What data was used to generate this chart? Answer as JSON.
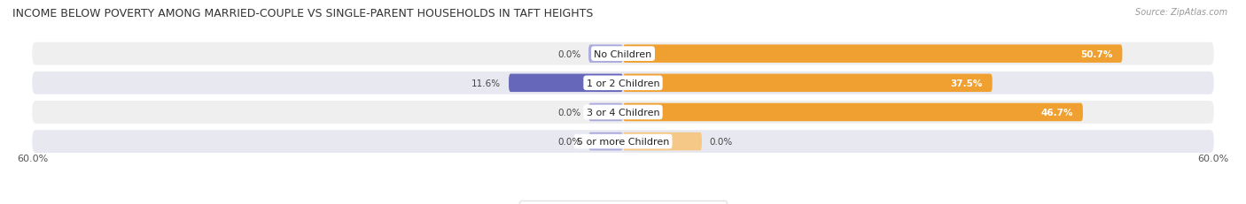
{
  "title": "INCOME BELOW POVERTY AMONG MARRIED-COUPLE VS SINGLE-PARENT HOUSEHOLDS IN TAFT HEIGHTS",
  "source": "Source: ZipAtlas.com",
  "categories": [
    "No Children",
    "1 or 2 Children",
    "3 or 4 Children",
    "5 or more Children"
  ],
  "married_couples": [
    0.0,
    11.6,
    0.0,
    0.0
  ],
  "single_parents": [
    50.7,
    37.5,
    46.7,
    0.0
  ],
  "x_max": 60.0,
  "x_left_label": "60.0%",
  "x_right_label": "60.0%",
  "married_color_dark": "#6666bb",
  "married_color_light": "#aaaadd",
  "single_color_dark": "#f0a030",
  "single_color_light": "#f5c888",
  "row_bg_even": "#efefef",
  "row_bg_odd": "#e8e8f0",
  "title_fontsize": 9,
  "label_fontsize": 8,
  "value_fontsize": 7.5,
  "tick_fontsize": 8,
  "legend_fontsize": 8,
  "source_fontsize": 7
}
